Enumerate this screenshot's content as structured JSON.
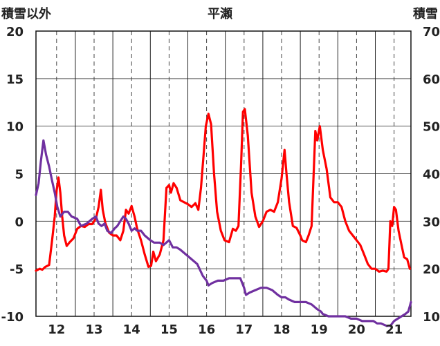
{
  "chart_data": {
    "type": "line",
    "title": "平瀬",
    "left_axis_label": "積雪以外",
    "right_axis_label": "積雪",
    "x_tick_labels": [
      "12",
      "13",
      "14",
      "15",
      "16",
      "17",
      "18",
      "19",
      "20",
      "21"
    ],
    "x_range": [
      11.45,
      21.45
    ],
    "y_left_range": [
      -10,
      20
    ],
    "y_left_ticks": [
      -10,
      -5,
      0,
      5,
      10,
      15,
      20
    ],
    "y_right_range": [
      10,
      70
    ],
    "y_right_ticks": [
      10,
      20,
      30,
      40,
      50,
      60,
      70
    ],
    "grid": "dashed vertical at years; solid horizontal at left ticks",
    "series": [
      {
        "color": "#ff0000",
        "axis": "left",
        "points": [
          [
            11.45,
            -5.2
          ],
          [
            11.55,
            -5.0
          ],
          [
            11.62,
            -5.1
          ],
          [
            11.7,
            -4.8
          ],
          [
            11.8,
            -4.6
          ],
          [
            11.88,
            -2.0
          ],
          [
            11.95,
            0.5
          ],
          [
            12.0,
            3.2
          ],
          [
            12.05,
            4.6
          ],
          [
            12.1,
            3.0
          ],
          [
            12.15,
            0.5
          ],
          [
            12.2,
            -1.5
          ],
          [
            12.27,
            -2.6
          ],
          [
            12.35,
            -2.2
          ],
          [
            12.45,
            -1.8
          ],
          [
            12.55,
            -0.8
          ],
          [
            12.65,
            -0.5
          ],
          [
            12.75,
            -0.6
          ],
          [
            12.85,
            -0.3
          ],
          [
            12.95,
            -0.3
          ],
          [
            13.05,
            0.3
          ],
          [
            13.12,
            1.5
          ],
          [
            13.18,
            3.3
          ],
          [
            13.23,
            1.2
          ],
          [
            13.3,
            -0.2
          ],
          [
            13.4,
            -1.2
          ],
          [
            13.5,
            -1.5
          ],
          [
            13.6,
            -1.5
          ],
          [
            13.7,
            -2.0
          ],
          [
            13.78,
            -1.0
          ],
          [
            13.85,
            1.2
          ],
          [
            13.92,
            0.8
          ],
          [
            14.0,
            1.6
          ],
          [
            14.08,
            0.5
          ],
          [
            14.15,
            -0.8
          ],
          [
            14.25,
            -2.0
          ],
          [
            14.35,
            -3.5
          ],
          [
            14.45,
            -4.8
          ],
          [
            14.52,
            -4.7
          ],
          [
            14.58,
            -3.2
          ],
          [
            14.65,
            -4.2
          ],
          [
            14.75,
            -3.5
          ],
          [
            14.85,
            -2.0
          ],
          [
            14.93,
            3.5
          ],
          [
            15.0,
            3.8
          ],
          [
            15.05,
            3.0
          ],
          [
            15.12,
            4.0
          ],
          [
            15.2,
            3.5
          ],
          [
            15.3,
            2.2
          ],
          [
            15.4,
            2.0
          ],
          [
            15.5,
            1.8
          ],
          [
            15.6,
            1.5
          ],
          [
            15.7,
            1.9
          ],
          [
            15.78,
            1.2
          ],
          [
            15.85,
            3.5
          ],
          [
            15.92,
            7.0
          ],
          [
            15.98,
            10.0
          ],
          [
            16.05,
            11.3
          ],
          [
            16.12,
            10.2
          ],
          [
            16.2,
            5.0
          ],
          [
            16.28,
            1.0
          ],
          [
            16.38,
            -1.0
          ],
          [
            16.48,
            -2.0
          ],
          [
            16.6,
            -2.2
          ],
          [
            16.7,
            -0.8
          ],
          [
            16.78,
            -1.0
          ],
          [
            16.85,
            -0.5
          ],
          [
            16.92,
            6.0
          ],
          [
            16.97,
            11.5
          ],
          [
            17.02,
            11.8
          ],
          [
            17.1,
            9.0
          ],
          [
            17.2,
            3.0
          ],
          [
            17.3,
            0.5
          ],
          [
            17.4,
            -0.6
          ],
          [
            17.5,
            0.0
          ],
          [
            17.6,
            1.0
          ],
          [
            17.7,
            1.2
          ],
          [
            17.8,
            1.0
          ],
          [
            17.9,
            2.0
          ],
          [
            18.0,
            4.5
          ],
          [
            18.08,
            7.5
          ],
          [
            18.13,
            5.0
          ],
          [
            18.2,
            2.0
          ],
          [
            18.3,
            -0.5
          ],
          [
            18.4,
            -0.7
          ],
          [
            18.5,
            -1.5
          ],
          [
            18.55,
            -2.0
          ],
          [
            18.65,
            -2.2
          ],
          [
            18.72,
            -1.5
          ],
          [
            18.8,
            -0.5
          ],
          [
            18.85,
            4.5
          ],
          [
            18.9,
            9.5
          ],
          [
            18.95,
            8.5
          ],
          [
            19.02,
            10.0
          ],
          [
            19.1,
            7.5
          ],
          [
            19.2,
            5.5
          ],
          [
            19.3,
            2.5
          ],
          [
            19.4,
            2.0
          ],
          [
            19.5,
            2.0
          ],
          [
            19.6,
            1.5
          ],
          [
            19.7,
            0.0
          ],
          [
            19.8,
            -1.0
          ],
          [
            19.9,
            -1.5
          ],
          [
            20.0,
            -2.0
          ],
          [
            20.1,
            -2.5
          ],
          [
            20.2,
            -3.5
          ],
          [
            20.3,
            -4.5
          ],
          [
            20.4,
            -5.0
          ],
          [
            20.5,
            -5.0
          ],
          [
            20.6,
            -5.3
          ],
          [
            20.7,
            -5.2
          ],
          [
            20.8,
            -5.3
          ],
          [
            20.85,
            -5.0
          ],
          [
            20.9,
            0.0
          ],
          [
            20.95,
            -0.5
          ],
          [
            21.0,
            1.5
          ],
          [
            21.05,
            1.2
          ],
          [
            21.12,
            -1.0
          ],
          [
            21.2,
            -2.5
          ],
          [
            21.27,
            -3.8
          ],
          [
            21.35,
            -4.0
          ],
          [
            21.42,
            -5.0
          ]
        ]
      },
      {
        "color": "#7030a0",
        "axis": "right",
        "points": [
          [
            11.45,
            35.5
          ],
          [
            11.52,
            38.0
          ],
          [
            11.58,
            42.5
          ],
          [
            11.65,
            47.0
          ],
          [
            11.72,
            44.0
          ],
          [
            11.8,
            41.5
          ],
          [
            11.88,
            38.5
          ],
          [
            11.95,
            36.0
          ],
          [
            12.02,
            33.0
          ],
          [
            12.1,
            31.0
          ],
          [
            12.2,
            32.0
          ],
          [
            12.3,
            32.0
          ],
          [
            12.4,
            31.0
          ],
          [
            12.55,
            30.5
          ],
          [
            12.65,
            29.0
          ],
          [
            12.8,
            29.5
          ],
          [
            12.95,
            30.5
          ],
          [
            13.05,
            31.0
          ],
          [
            13.12,
            29.5
          ],
          [
            13.2,
            29.0
          ],
          [
            13.28,
            29.5
          ],
          [
            13.35,
            28.0
          ],
          [
            13.45,
            27.5
          ],
          [
            13.55,
            28.5
          ],
          [
            13.62,
            29.0
          ],
          [
            13.7,
            30.0
          ],
          [
            13.78,
            31.0
          ],
          [
            13.85,
            30.5
          ],
          [
            13.92,
            29.5
          ],
          [
            14.0,
            28.0
          ],
          [
            14.08,
            28.5
          ],
          [
            14.15,
            28.0
          ],
          [
            14.25,
            28.0
          ],
          [
            14.35,
            27.0
          ],
          [
            14.5,
            26.0
          ],
          [
            14.6,
            25.5
          ],
          [
            14.75,
            25.5
          ],
          [
            14.85,
            25.0
          ],
          [
            15.0,
            26.0
          ],
          [
            15.1,
            24.5
          ],
          [
            15.2,
            24.5
          ],
          [
            15.3,
            24.0
          ],
          [
            15.45,
            23.0
          ],
          [
            15.6,
            22.0
          ],
          [
            15.75,
            21.0
          ],
          [
            15.9,
            18.5
          ],
          [
            16.0,
            17.5
          ],
          [
            16.05,
            16.5
          ],
          [
            16.15,
            17.0
          ],
          [
            16.3,
            17.5
          ],
          [
            16.45,
            17.5
          ],
          [
            16.6,
            18.0
          ],
          [
            16.75,
            18.0
          ],
          [
            16.9,
            18.0
          ],
          [
            17.0,
            16.0
          ],
          [
            17.05,
            14.5
          ],
          [
            17.15,
            15.0
          ],
          [
            17.3,
            15.5
          ],
          [
            17.45,
            16.0
          ],
          [
            17.6,
            16.0
          ],
          [
            17.75,
            15.5
          ],
          [
            17.9,
            14.5
          ],
          [
            18.0,
            14.0
          ],
          [
            18.1,
            14.0
          ],
          [
            18.2,
            13.5
          ],
          [
            18.35,
            13.0
          ],
          [
            18.5,
            13.0
          ],
          [
            18.65,
            13.0
          ],
          [
            18.8,
            12.5
          ],
          [
            18.95,
            11.5
          ],
          [
            19.05,
            11.0
          ],
          [
            19.1,
            10.5
          ],
          [
            19.25,
            10.0
          ],
          [
            19.4,
            10.0
          ],
          [
            19.55,
            10.0
          ],
          [
            19.7,
            10.0
          ],
          [
            19.85,
            9.5
          ],
          [
            20.0,
            9.5
          ],
          [
            20.15,
            9.0
          ],
          [
            20.3,
            9.0
          ],
          [
            20.45,
            9.0
          ],
          [
            20.55,
            8.5
          ],
          [
            20.65,
            8.5
          ],
          [
            20.8,
            8.0
          ],
          [
            20.9,
            8.0
          ],
          [
            21.0,
            9.0
          ],
          [
            21.1,
            9.5
          ],
          [
            21.2,
            10.0
          ],
          [
            21.3,
            10.5
          ],
          [
            21.38,
            11.0
          ],
          [
            21.45,
            13.0
          ]
        ]
      }
    ]
  }
}
